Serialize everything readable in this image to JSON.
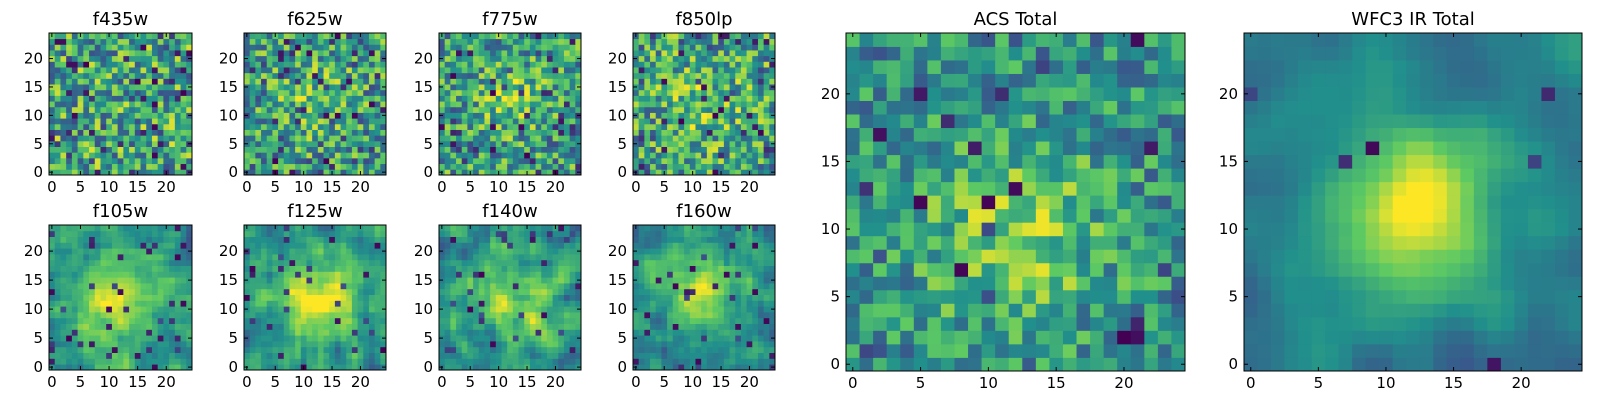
{
  "figure": {
    "colormap": [
      "#440154",
      "#3b528b",
      "#21908c",
      "#5dc963",
      "#fde725"
    ]
  },
  "chart_data": [
    {
      "type": "heatmap",
      "title": "f435w",
      "grid_size": 25,
      "x_ticks": [
        0,
        5,
        10,
        15,
        20
      ],
      "y_ticks": [
        0,
        5,
        10,
        15,
        20
      ],
      "xlim": [
        0,
        24
      ],
      "ylim": [
        0,
        24
      ],
      "seed": 11,
      "center": [
        12,
        12
      ],
      "blob_strength": 0.0,
      "blob_sigma": 6,
      "noise": 1.0,
      "smooth": 0,
      "dark_prob": 0.1
    },
    {
      "type": "heatmap",
      "title": "f625w",
      "grid_size": 25,
      "x_ticks": [
        0,
        5,
        10,
        15,
        20
      ],
      "y_ticks": [
        0,
        5,
        10,
        15,
        20
      ],
      "xlim": [
        0,
        24
      ],
      "ylim": [
        0,
        24
      ],
      "seed": 23,
      "center": [
        12,
        13
      ],
      "blob_strength": 0.25,
      "blob_sigma": 5,
      "noise": 0.9,
      "smooth": 0,
      "dark_prob": 0.08
    },
    {
      "type": "heatmap",
      "title": "f775w",
      "grid_size": 25,
      "x_ticks": [
        0,
        5,
        10,
        15,
        20
      ],
      "y_ticks": [
        0,
        5,
        10,
        15,
        20
      ],
      "xlim": [
        0,
        24
      ],
      "ylim": [
        0,
        24
      ],
      "seed": 37,
      "center": [
        12,
        13
      ],
      "blob_strength": 0.35,
      "blob_sigma": 4,
      "noise": 0.9,
      "smooth": 0,
      "dark_prob": 0.08
    },
    {
      "type": "heatmap",
      "title": "f850lp",
      "grid_size": 25,
      "x_ticks": [
        0,
        5,
        10,
        15,
        20
      ],
      "y_ticks": [
        0,
        5,
        10,
        15,
        20
      ],
      "xlim": [
        0,
        24
      ],
      "ylim": [
        0,
        24
      ],
      "seed": 41,
      "center": [
        12,
        12
      ],
      "blob_strength": 0.25,
      "blob_sigma": 5,
      "noise": 0.95,
      "smooth": 0,
      "dark_prob": 0.09
    },
    {
      "type": "heatmap",
      "title": "f105w",
      "grid_size": 25,
      "x_ticks": [
        0,
        5,
        10,
        15,
        20
      ],
      "y_ticks": [
        0,
        5,
        10,
        15,
        20
      ],
      "xlim": [
        0,
        24
      ],
      "ylim": [
        0,
        24
      ],
      "seed": 53,
      "center": [
        11,
        11
      ],
      "blob_strength": 0.7,
      "blob_sigma": 6,
      "noise": 0.7,
      "smooth": 1,
      "dark_prob": 0.05
    },
    {
      "type": "heatmap",
      "title": "f125w",
      "grid_size": 25,
      "x_ticks": [
        0,
        5,
        10,
        15,
        20
      ],
      "y_ticks": [
        0,
        5,
        10,
        15,
        20
      ],
      "xlim": [
        0,
        24
      ],
      "ylim": [
        0,
        24
      ],
      "seed": 67,
      "center": [
        13,
        12
      ],
      "blob_strength": 0.8,
      "blob_sigma": 5,
      "noise": 0.7,
      "smooth": 1,
      "dark_prob": 0.04
    },
    {
      "type": "heatmap",
      "title": "f140w",
      "grid_size": 25,
      "x_ticks": [
        0,
        5,
        10,
        15,
        20
      ],
      "y_ticks": [
        0,
        5,
        10,
        15,
        20
      ],
      "xlim": [
        0,
        24
      ],
      "ylim": [
        0,
        24
      ],
      "seed": 79,
      "center": [
        12,
        11
      ],
      "blob_strength": 0.6,
      "blob_sigma": 5,
      "noise": 0.75,
      "smooth": 1,
      "dark_prob": 0.05
    },
    {
      "type": "heatmap",
      "title": "f160w",
      "grid_size": 25,
      "x_ticks": [
        0,
        5,
        10,
        15,
        20
      ],
      "y_ticks": [
        0,
        5,
        10,
        15,
        20
      ],
      "xlim": [
        0,
        24
      ],
      "ylim": [
        0,
        24
      ],
      "seed": 83,
      "center": [
        12,
        13
      ],
      "blob_strength": 0.85,
      "blob_sigma": 5,
      "noise": 0.65,
      "smooth": 1,
      "dark_prob": 0.04
    },
    {
      "type": "heatmap",
      "title": "ACS Total",
      "grid_size": 25,
      "x_ticks": [
        0,
        5,
        10,
        15,
        20
      ],
      "y_ticks": [
        0,
        5,
        10,
        15,
        20
      ],
      "xlim": [
        0,
        24
      ],
      "ylim": [
        0,
        24
      ],
      "seed": 97,
      "center": [
        12,
        10
      ],
      "blob_strength": 0.55,
      "blob_sigma": 5,
      "noise": 0.7,
      "smooth": 0,
      "dark_prob": 0.04
    },
    {
      "type": "heatmap",
      "title": "WFC3 IR Total",
      "grid_size": 25,
      "x_ticks": [
        0,
        5,
        10,
        15,
        20
      ],
      "y_ticks": [
        0,
        5,
        10,
        15,
        20
      ],
      "xlim": [
        0,
        24
      ],
      "ylim": [
        0,
        24
      ],
      "seed": 101,
      "center": [
        12,
        12
      ],
      "blob_strength": 1.0,
      "blob_sigma": 5,
      "noise": 0.45,
      "smooth": 2,
      "dark_prob": 0.02
    }
  ]
}
